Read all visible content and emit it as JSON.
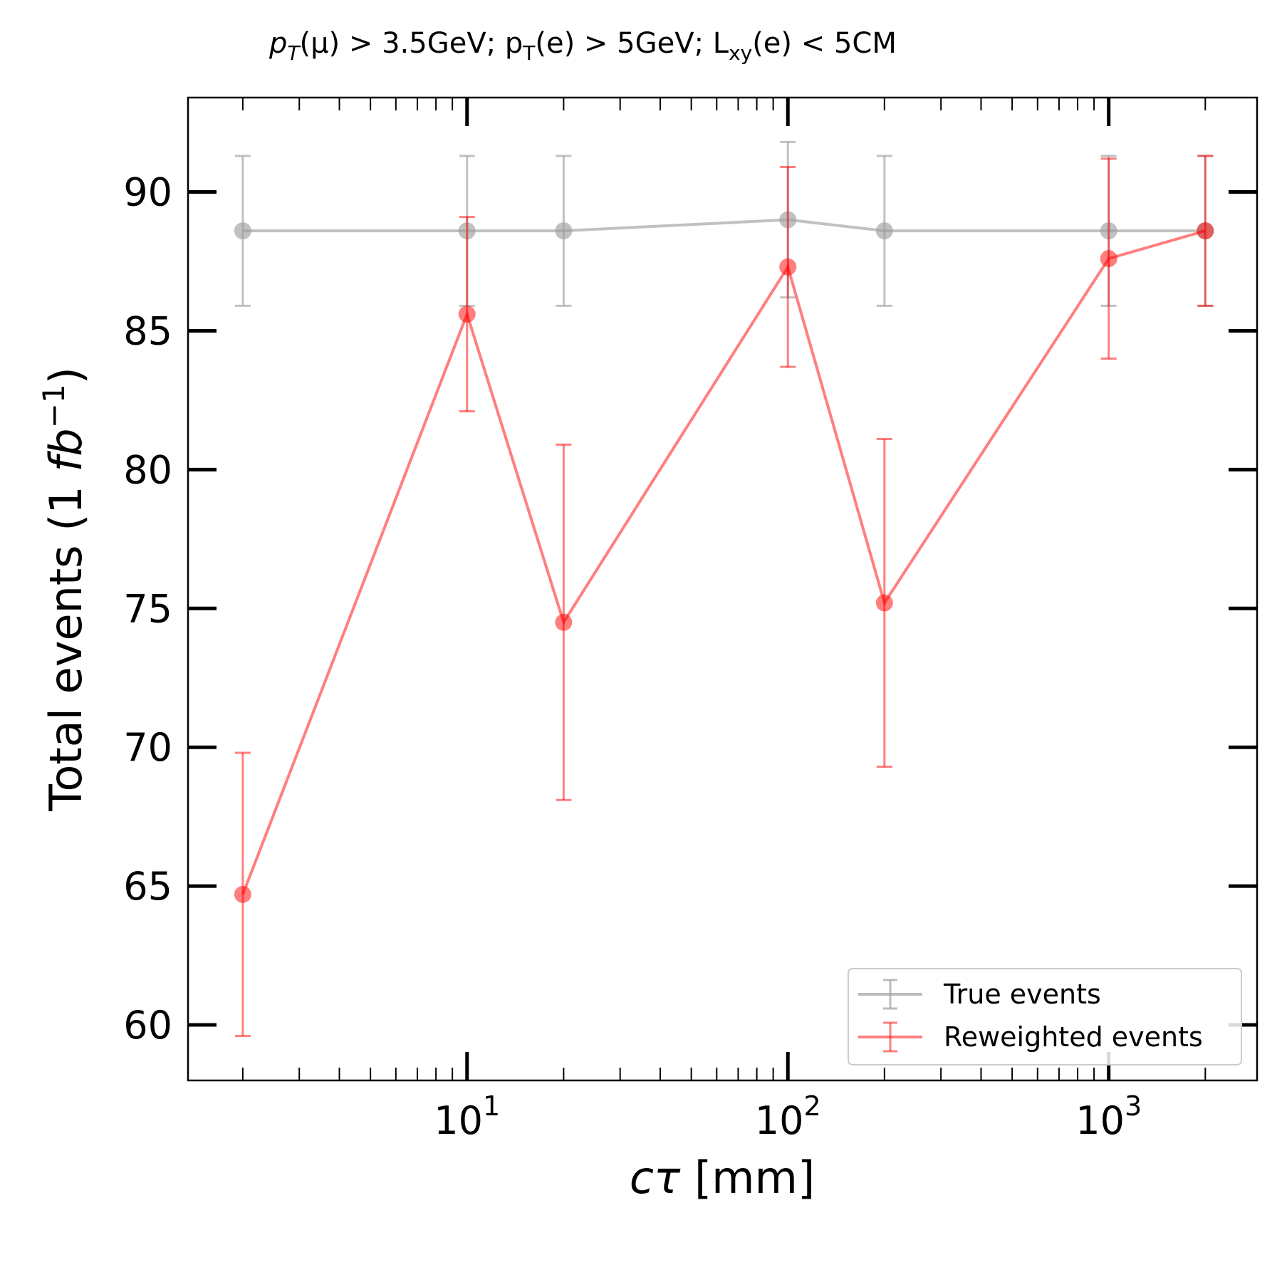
{
  "chart_data": {
    "type": "line",
    "title": "p_T(μ) > 3.5GeV; p_T(e) > 5GeV; L_xy(e) < 5CM",
    "title_parts": {
      "p1": "p",
      "s1": "T",
      "a1": "(μ) > 3.5GeV; p",
      "s2": "T",
      "a2": "(e) > 5GeV; L",
      "s3": "xy",
      "a3": "(e) < 5CM"
    },
    "xlabel": "cτ [mm]",
    "xlabel_parts": {
      "sym": "cτ",
      "rest": " [mm]"
    },
    "ylabel": "Total events (1 fb^-1)",
    "ylabel_parts": {
      "pre": "Total events (1 ",
      "unit": "fb",
      "exp": "−1",
      "post": ")"
    },
    "xscale": "log",
    "xlim": [
      1.35,
      2900
    ],
    "ylim": [
      58.0,
      93.4
    ],
    "x_ticks": [
      {
        "value": 10,
        "base": "10",
        "exp": "1"
      },
      {
        "value": 100,
        "base": "10",
        "exp": "2"
      },
      {
        "value": 1000,
        "base": "10",
        "exp": "3"
      }
    ],
    "y_ticks": [
      60,
      65,
      70,
      75,
      80,
      85,
      90
    ],
    "y_tick_labels": [
      "60",
      "65",
      "70",
      "75",
      "80",
      "85",
      "90"
    ],
    "grid": false,
    "legend_position": "lower-right",
    "series": [
      {
        "name": "True events",
        "color": "#a0a0a0",
        "x": [
          2,
          10,
          20,
          100,
          200,
          1000,
          2000
        ],
        "y": [
          88.6,
          88.6,
          88.6,
          89.0,
          88.6,
          88.6,
          88.6
        ],
        "err": [
          2.7,
          2.7,
          2.7,
          2.8,
          2.7,
          2.7,
          2.7
        ]
      },
      {
        "name": "Reweighted events",
        "color": "#ff0000",
        "x": [
          2,
          10,
          20,
          100,
          200,
          1000,
          2000
        ],
        "y": [
          64.7,
          85.6,
          74.5,
          87.3,
          75.2,
          87.6,
          88.6
        ],
        "err": [
          5.1,
          3.5,
          6.4,
          3.6,
          5.9,
          3.6,
          2.7
        ]
      }
    ]
  }
}
